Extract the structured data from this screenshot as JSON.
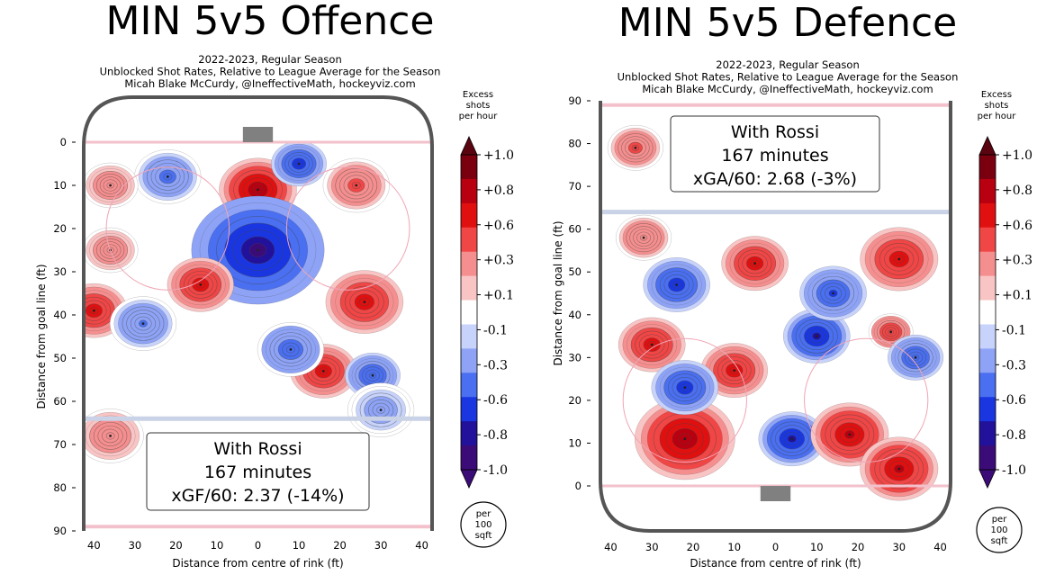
{
  "chart_data": [
    {
      "type": "heatmap",
      "title": "MIN 5v5 Offence",
      "subtitle": [
        "2022-2023, Regular Season",
        "Unblocked Shot Rates, Relative to League Average for the Season",
        "Micah Blake McCurdy, @IneffectiveMath, hockeyviz.com"
      ],
      "xlabel": "Distance from centre of rink (ft)",
      "ylabel": "Distance from goal line (ft)",
      "x_ticks": [
        "40",
        "30",
        "20",
        "10",
        "0",
        "10",
        "20",
        "30",
        "40"
      ],
      "y_ticks": [
        "0",
        "10",
        "20",
        "30",
        "40",
        "50",
        "60",
        "70",
        "80",
        "90"
      ],
      "xlim": [
        -42.5,
        42.5
      ],
      "ylim": [
        0,
        90
      ],
      "y_direction": "down",
      "blue_line": 64,
      "colorbar": {
        "title": [
          "Excess",
          "shots",
          "per hour"
        ],
        "ticks": [
          "+1.0",
          "+0.8",
          "+0.6",
          "+0.3",
          "+0.1",
          "-0.1",
          "-0.3",
          "-0.6",
          "-0.8",
          "-1.0"
        ],
        "units": [
          "per",
          "100",
          "sqft"
        ]
      },
      "annotation": [
        "With Rossi",
        "167 minutes",
        "xGF/60: 2.37 (-14%)"
      ],
      "hotspots": [
        {
          "x": 0,
          "y": 11,
          "v": 1.0,
          "r": 7
        },
        {
          "x": 0,
          "y": 25,
          "v": -1.0,
          "r": 12
        },
        {
          "x": 10,
          "y": 5,
          "v": -0.7,
          "r": 5
        },
        {
          "x": -22,
          "y": 8,
          "v": -0.35,
          "r": 6
        },
        {
          "x": -36,
          "y": 10,
          "v": 0.25,
          "r": 5
        },
        {
          "x": 24,
          "y": 10,
          "v": 0.35,
          "r": 6
        },
        {
          "x": -40,
          "y": 39,
          "v": 0.75,
          "r": 6
        },
        {
          "x": -14,
          "y": 33,
          "v": 0.7,
          "r": 6
        },
        {
          "x": 26,
          "y": 37,
          "v": 0.75,
          "r": 7
        },
        {
          "x": 16,
          "y": 53,
          "v": 0.7,
          "r": 6
        },
        {
          "x": 28,
          "y": 54,
          "v": -0.5,
          "r": 5
        },
        {
          "x": 8,
          "y": 48,
          "v": -0.45,
          "r": 6
        },
        {
          "x": -28,
          "y": 42,
          "v": -0.3,
          "r": 6
        },
        {
          "x": -36,
          "y": 25,
          "v": 0.25,
          "r": 5
        },
        {
          "x": -36,
          "y": 68,
          "v": 0.25,
          "r": 6
        },
        {
          "x": 30,
          "y": 62,
          "v": -0.2,
          "r": 6
        }
      ]
    },
    {
      "type": "heatmap",
      "title": "MIN 5v5 Defence",
      "subtitle": [
        "2022-2023, Regular Season",
        "Unblocked Shot Rates, Relative to League Average for the Season",
        "Micah Blake McCurdy, @IneffectiveMath, hockeyviz.com"
      ],
      "xlabel": "Distance from centre of rink (ft)",
      "ylabel": "Distance from goal line (ft)",
      "x_ticks": [
        "40",
        "30",
        "20",
        "10",
        "0",
        "10",
        "20",
        "30",
        "40"
      ],
      "y_ticks": [
        "0",
        "10",
        "20",
        "30",
        "40",
        "50",
        "60",
        "70",
        "80",
        "90"
      ],
      "xlim": [
        -42.5,
        42.5
      ],
      "ylim": [
        0,
        90
      ],
      "y_direction": "up",
      "blue_line": 64,
      "colorbar": {
        "title": [
          "Excess",
          "shots",
          "per hour"
        ],
        "ticks": [
          "+1.0",
          "+0.8",
          "+0.6",
          "+0.3",
          "+0.1",
          "-0.1",
          "-0.3",
          "-0.6",
          "-0.8",
          "-1.0"
        ],
        "units": [
          "per",
          "100",
          "sqft"
        ]
      },
      "annotation": [
        "With Rossi",
        "167 minutes",
        "xGA/60: 2.68 (-3%)"
      ],
      "hotspots": [
        {
          "x": -22,
          "y": 11,
          "v": 1.0,
          "r": 9
        },
        {
          "x": 4,
          "y": 11,
          "v": -0.9,
          "r": 6
        },
        {
          "x": 18,
          "y": 12,
          "v": 0.85,
          "r": 7
        },
        {
          "x": 30,
          "y": 4,
          "v": 0.9,
          "r": 7
        },
        {
          "x": -30,
          "y": 33,
          "v": 0.7,
          "r": 6
        },
        {
          "x": -10,
          "y": 27,
          "v": 0.7,
          "r": 6
        },
        {
          "x": -22,
          "y": 23,
          "v": -0.7,
          "r": 6
        },
        {
          "x": 10,
          "y": 35,
          "v": -0.9,
          "r": 6
        },
        {
          "x": 14,
          "y": 45,
          "v": -0.6,
          "r": 6
        },
        {
          "x": -5,
          "y": 52,
          "v": 0.7,
          "r": 6
        },
        {
          "x": 30,
          "y": 53,
          "v": 0.8,
          "r": 7
        },
        {
          "x": 28,
          "y": 36,
          "v": 0.5,
          "r": 4
        },
        {
          "x": -24,
          "y": 47,
          "v": -0.7,
          "r": 6
        },
        {
          "x": -32,
          "y": 58,
          "v": 0.3,
          "r": 5
        },
        {
          "x": -34,
          "y": 79,
          "v": 0.35,
          "r": 5
        },
        {
          "x": 34,
          "y": 30,
          "v": -0.5,
          "r": 5
        }
      ]
    }
  ]
}
